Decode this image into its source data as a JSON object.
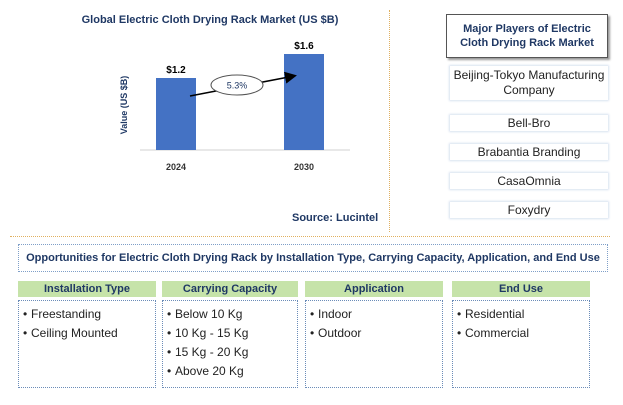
{
  "chart": {
    "title": "Global Electric Cloth Drying Rack Market (US $B)",
    "source": "Source: Lucintel",
    "cagr_label": "5.3%"
  },
  "chart_data": {
    "type": "bar",
    "title": "Global Electric Cloth Drying Rack Market (US $B)",
    "categories": [
      "2024",
      "2030"
    ],
    "values": [
      1.2,
      1.6
    ],
    "data_labels": [
      "$1.2",
      "$1.6"
    ],
    "xlabel": "",
    "ylabel": "Value (US $B)",
    "ylim": [
      0,
      2.0
    ],
    "grid": false,
    "bar_color": "#4472c4",
    "annotation": "5.3%"
  },
  "players": {
    "title": "Major Players of Electric Cloth Drying Rack Market",
    "items": [
      "Beijing-Tokyo Manufacturing Company",
      "Bell-Bro",
      "Brabantia Branding",
      "CasaOmnia",
      "Foxydry"
    ]
  },
  "opportunities": {
    "banner": "Opportunities for Electric Cloth Drying Rack by Installation Type, Carrying Capacity, Application, and  End Use",
    "segments": [
      {
        "title": "Installation Type",
        "items": [
          "Freestanding",
          "Ceiling Mounted"
        ]
      },
      {
        "title": "Carrying Capacity",
        "items": [
          "Below 10 Kg",
          "10 Kg - 15 Kg",
          "15 Kg - 20 Kg",
          "Above 20 Kg"
        ]
      },
      {
        "title": "Application",
        "items": [
          "Indoor",
          "Outdoor"
        ]
      },
      {
        "title": "End Use",
        "items": [
          "Residential",
          "Commercial"
        ]
      }
    ]
  },
  "colors": {
    "accent": "#1f3864",
    "bar": "#4472c4",
    "segment_header": "#c6e3a9",
    "separator": "#e0b060"
  }
}
